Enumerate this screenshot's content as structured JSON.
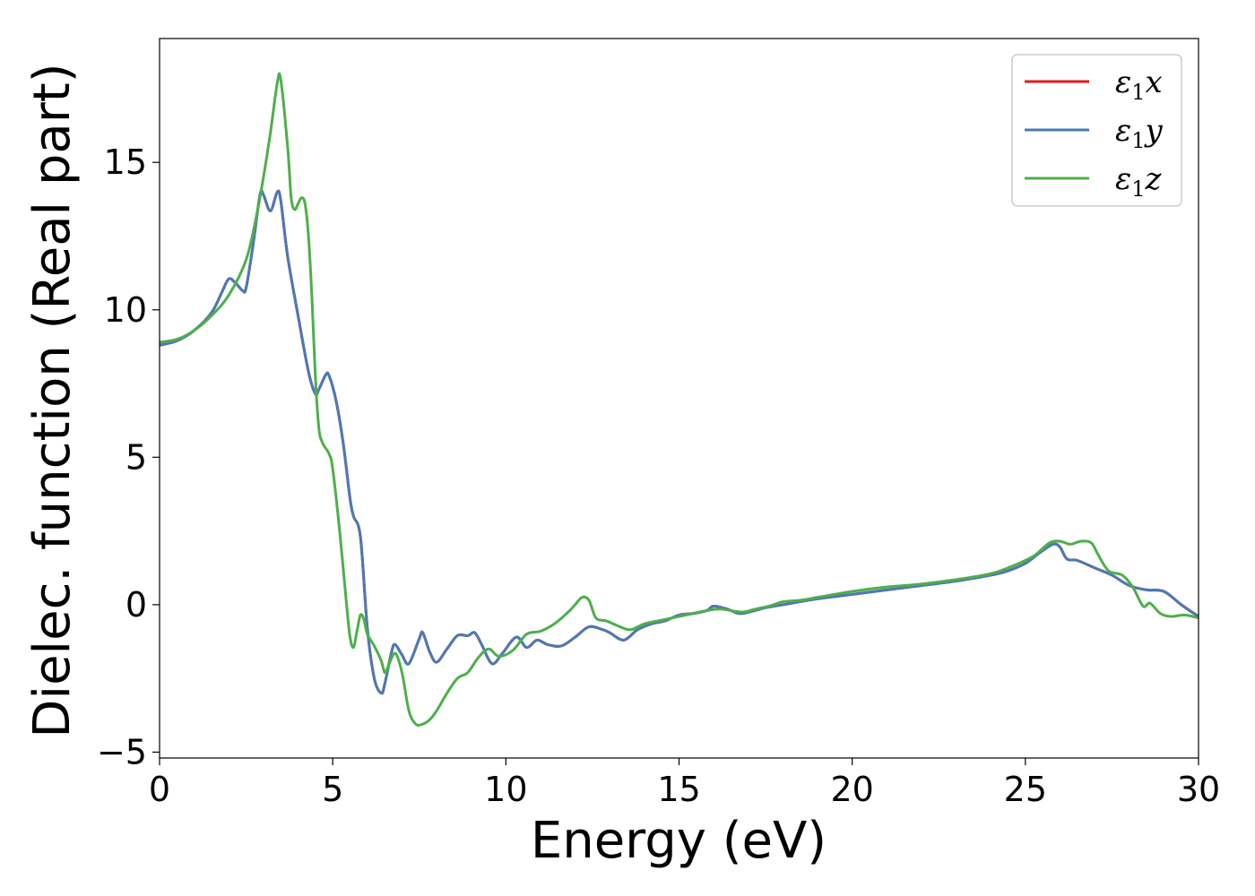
{
  "chart_data": {
    "type": "line",
    "xlabel": "Energy (eV)",
    "ylabel": "Dielec. function (Real part)",
    "xlim": [
      0,
      30
    ],
    "ylim": [
      -5.2,
      19.2
    ],
    "xticks": [
      0,
      5,
      10,
      15,
      20,
      25,
      30
    ],
    "yticks": [
      -5,
      0,
      5,
      10,
      15
    ],
    "grid": false,
    "legend_position": "top-right",
    "series": [
      {
        "name": "ε₁x",
        "legend_main": "ε",
        "legend_sub": "1",
        "legend_tail": "x",
        "color": "#e41a1c",
        "x": [
          0,
          0.5,
          1.0,
          1.5,
          1.8,
          2.0,
          2.2,
          2.4,
          2.5,
          2.7,
          2.9,
          3.0,
          3.2,
          3.4,
          3.5,
          3.7,
          4.0,
          4.3,
          4.5,
          4.6,
          4.8,
          4.9,
          5.1,
          5.3,
          5.5,
          5.6,
          5.8,
          6.0,
          6.2,
          6.4,
          6.5,
          6.7,
          6.8,
          7.0,
          7.2,
          7.5,
          7.6,
          7.8,
          8.0,
          8.3,
          8.6,
          8.9,
          9.1,
          9.3,
          9.6,
          9.9,
          10.3,
          10.6,
          10.9,
          11.2,
          11.6,
          12.0,
          12.4,
          12.8,
          13.0,
          13.4,
          13.8,
          14.2,
          14.6,
          15.0,
          15.4,
          15.8,
          16.0,
          16.4,
          16.8,
          17.5,
          18.0,
          19.0,
          20.0,
          21.0,
          22.0,
          23.0,
          24.0,
          24.5,
          25.0,
          25.4,
          25.8,
          26.0,
          26.2,
          26.5,
          27.0,
          27.5,
          28.0,
          28.5,
          29.0,
          29.5,
          30.0
        ],
        "values": [
          8.8,
          8.95,
          9.3,
          9.9,
          10.6,
          11.05,
          10.9,
          10.65,
          10.75,
          12.2,
          13.9,
          13.9,
          13.35,
          14.0,
          13.7,
          11.8,
          9.8,
          7.9,
          7.15,
          7.3,
          7.8,
          7.75,
          6.9,
          5.5,
          3.6,
          3.0,
          2.3,
          -0.8,
          -2.5,
          -3.0,
          -2.7,
          -1.6,
          -1.35,
          -1.7,
          -2.0,
          -1.15,
          -0.95,
          -1.6,
          -1.95,
          -1.5,
          -1.05,
          -1.05,
          -0.95,
          -1.35,
          -2.0,
          -1.65,
          -1.1,
          -1.45,
          -1.2,
          -1.35,
          -1.4,
          -1.1,
          -0.75,
          -0.85,
          -0.95,
          -1.2,
          -0.85,
          -0.65,
          -0.55,
          -0.35,
          -0.3,
          -0.2,
          -0.05,
          -0.15,
          -0.3,
          -0.1,
          0.0,
          0.2,
          0.35,
          0.5,
          0.65,
          0.8,
          1.0,
          1.15,
          1.4,
          1.75,
          2.05,
          1.95,
          1.55,
          1.5,
          1.25,
          1.0,
          0.65,
          0.5,
          0.45,
          0.0,
          -0.4
        ]
      },
      {
        "name": "ε₁y",
        "legend_main": "ε",
        "legend_sub": "1",
        "legend_tail": "y",
        "color": "#4a7ab5",
        "x": [
          0,
          0.5,
          1.0,
          1.5,
          1.8,
          2.0,
          2.2,
          2.4,
          2.5,
          2.7,
          2.9,
          3.0,
          3.2,
          3.4,
          3.5,
          3.7,
          4.0,
          4.3,
          4.5,
          4.6,
          4.8,
          4.9,
          5.1,
          5.3,
          5.5,
          5.6,
          5.8,
          6.0,
          6.2,
          6.4,
          6.5,
          6.7,
          6.8,
          7.0,
          7.2,
          7.5,
          7.6,
          7.8,
          8.0,
          8.3,
          8.6,
          8.9,
          9.1,
          9.3,
          9.6,
          9.9,
          10.3,
          10.6,
          10.9,
          11.2,
          11.6,
          12.0,
          12.4,
          12.8,
          13.0,
          13.4,
          13.8,
          14.2,
          14.6,
          15.0,
          15.4,
          15.8,
          16.0,
          16.4,
          16.8,
          17.5,
          18.0,
          19.0,
          20.0,
          21.0,
          22.0,
          23.0,
          24.0,
          24.5,
          25.0,
          25.4,
          25.8,
          26.0,
          26.2,
          26.5,
          27.0,
          27.5,
          28.0,
          28.5,
          29.0,
          29.5,
          30.0
        ],
        "values": [
          8.8,
          8.95,
          9.3,
          9.9,
          10.6,
          11.05,
          10.9,
          10.65,
          10.75,
          12.2,
          13.9,
          13.9,
          13.35,
          14.0,
          13.7,
          11.8,
          9.8,
          7.9,
          7.15,
          7.3,
          7.8,
          7.75,
          6.9,
          5.5,
          3.6,
          3.0,
          2.3,
          -0.8,
          -2.5,
          -3.0,
          -2.7,
          -1.6,
          -1.35,
          -1.7,
          -2.0,
          -1.15,
          -0.95,
          -1.6,
          -1.95,
          -1.5,
          -1.05,
          -1.05,
          -0.95,
          -1.35,
          -2.0,
          -1.65,
          -1.1,
          -1.45,
          -1.2,
          -1.35,
          -1.4,
          -1.1,
          -0.75,
          -0.85,
          -0.95,
          -1.2,
          -0.85,
          -0.65,
          -0.55,
          -0.35,
          -0.3,
          -0.2,
          -0.05,
          -0.15,
          -0.3,
          -0.1,
          0.0,
          0.2,
          0.35,
          0.5,
          0.65,
          0.8,
          1.0,
          1.15,
          1.4,
          1.75,
          2.05,
          1.95,
          1.55,
          1.5,
          1.25,
          1.0,
          0.65,
          0.5,
          0.45,
          0.0,
          -0.4
        ]
      },
      {
        "name": "ε₁z",
        "legend_main": "ε",
        "legend_sub": "1",
        "legend_tail": "z",
        "color": "#4daf4a",
        "x": [
          0,
          0.5,
          1.0,
          1.5,
          2.0,
          2.5,
          2.8,
          3.0,
          3.2,
          3.4,
          3.5,
          3.7,
          3.8,
          3.9,
          4.0,
          4.1,
          4.2,
          4.3,
          4.4,
          4.5,
          4.6,
          4.7,
          4.9,
          5.0,
          5.2,
          5.4,
          5.5,
          5.6,
          5.7,
          5.8,
          5.9,
          6.0,
          6.2,
          6.4,
          6.5,
          6.6,
          6.8,
          7.0,
          7.2,
          7.4,
          7.6,
          7.8,
          8.0,
          8.3,
          8.6,
          8.9,
          9.2,
          9.5,
          9.8,
          10.2,
          10.6,
          11.0,
          11.4,
          11.8,
          12.0,
          12.2,
          12.4,
          12.6,
          12.9,
          13.3,
          13.6,
          14.0,
          14.4,
          15.0,
          15.4,
          15.8,
          16.2,
          16.8,
          17.2,
          17.6,
          18.0,
          18.5,
          19.0,
          20.0,
          21.0,
          22.0,
          23.0,
          24.0,
          24.5,
          25.0,
          25.3,
          25.7,
          26.0,
          26.3,
          26.6,
          26.9,
          27.1,
          27.4,
          27.8,
          28.1,
          28.4,
          28.6,
          28.9,
          29.2,
          29.6,
          30.0
        ],
        "values": [
          8.9,
          9.0,
          9.3,
          9.8,
          10.5,
          11.7,
          13.2,
          14.5,
          16.0,
          17.7,
          17.8,
          15.5,
          13.8,
          13.4,
          13.6,
          13.8,
          13.6,
          12.5,
          10.4,
          7.7,
          6.0,
          5.5,
          5.1,
          4.6,
          2.5,
          0.0,
          -1.1,
          -1.45,
          -0.9,
          -0.35,
          -0.5,
          -1.0,
          -1.4,
          -1.9,
          -2.3,
          -2.1,
          -1.65,
          -2.3,
          -3.6,
          -4.05,
          -4.05,
          -3.9,
          -3.6,
          -3.0,
          -2.5,
          -2.3,
          -1.8,
          -1.5,
          -1.75,
          -1.55,
          -1.0,
          -0.9,
          -0.65,
          -0.25,
          0.0,
          0.25,
          0.15,
          -0.45,
          -0.55,
          -0.75,
          -0.85,
          -0.65,
          -0.55,
          -0.4,
          -0.3,
          -0.2,
          -0.15,
          -0.25,
          -0.15,
          -0.05,
          0.1,
          0.15,
          0.25,
          0.45,
          0.6,
          0.7,
          0.85,
          1.05,
          1.25,
          1.5,
          1.7,
          2.1,
          2.15,
          2.05,
          2.15,
          2.1,
          1.7,
          1.15,
          1.0,
          0.6,
          -0.05,
          0.05,
          -0.3,
          -0.4,
          -0.35,
          -0.45
        ]
      }
    ]
  }
}
